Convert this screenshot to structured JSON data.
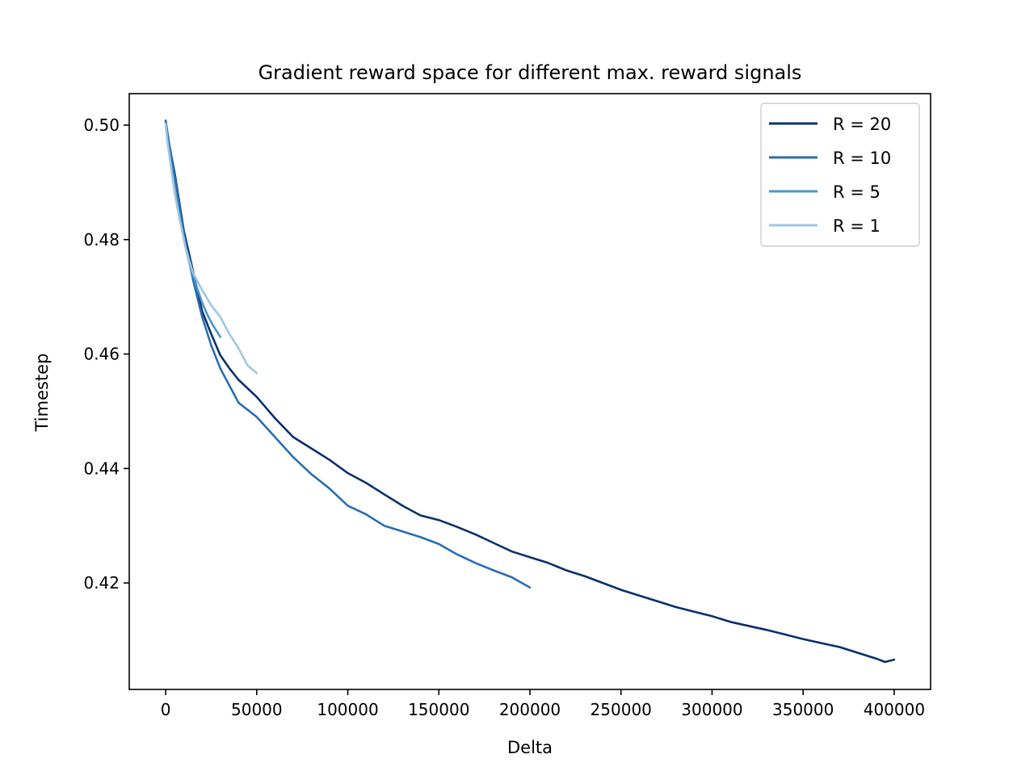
{
  "chart_data": {
    "type": "line",
    "title": "Gradient reward space for different max. reward signals",
    "xlabel": "Delta",
    "ylabel": "Timestep",
    "xlim": [
      -20000,
      420000
    ],
    "ylim": [
      0.4014,
      0.5055
    ],
    "xticks": [
      0,
      50000,
      100000,
      150000,
      200000,
      250000,
      300000,
      350000,
      400000
    ],
    "xtick_labels": [
      "0",
      "50000",
      "100000",
      "150000",
      "200000",
      "250000",
      "300000",
      "350000",
      "400000"
    ],
    "yticks": [
      0.42,
      0.44,
      0.46,
      0.48,
      0.5
    ],
    "ytick_labels": [
      "0.42",
      "0.44",
      "0.46",
      "0.48",
      "0.50"
    ],
    "grid": false,
    "legend": {
      "position": "top-right",
      "entries": [
        "R = 20",
        "R = 10",
        "R = 5",
        "R = 1"
      ]
    },
    "series": [
      {
        "name": "R = 20",
        "color": "#08306b",
        "x": [
          0,
          2000,
          5000,
          10000,
          15000,
          20000,
          25000,
          30000,
          35000,
          40000,
          50000,
          60000,
          70000,
          80000,
          90000,
          100000,
          110000,
          120000,
          130000,
          140000,
          150000,
          160000,
          170000,
          180000,
          190000,
          200000,
          210000,
          220000,
          230000,
          240000,
          250000,
          260000,
          270000,
          280000,
          290000,
          300000,
          310000,
          320000,
          330000,
          340000,
          350000,
          360000,
          370000,
          380000,
          390000,
          395000,
          400000
        ],
        "y": [
          0.5007,
          0.4965,
          0.4915,
          0.4815,
          0.4745,
          0.4675,
          0.4635,
          0.4598,
          0.4575,
          0.4555,
          0.4525,
          0.4488,
          0.4455,
          0.4435,
          0.4415,
          0.4392,
          0.4375,
          0.4355,
          0.4335,
          0.4318,
          0.431,
          0.4298,
          0.4285,
          0.427,
          0.4255,
          0.4245,
          0.4235,
          0.4222,
          0.4212,
          0.42,
          0.4188,
          0.4178,
          0.4168,
          0.4158,
          0.415,
          0.4142,
          0.4132,
          0.4125,
          0.4118,
          0.411,
          0.4102,
          0.4095,
          0.4088,
          0.4078,
          0.4068,
          0.4062,
          0.4066
        ]
      },
      {
        "name": "R = 10",
        "color": "#2b6db0",
        "x": [
          0,
          2000,
          5000,
          10000,
          15000,
          20000,
          25000,
          30000,
          35000,
          40000,
          50000,
          60000,
          70000,
          80000,
          90000,
          100000,
          110000,
          120000,
          130000,
          140000,
          150000,
          160000,
          170000,
          180000,
          190000,
          200000
        ],
        "y": [
          0.5008,
          0.4965,
          0.491,
          0.481,
          0.473,
          0.4665,
          0.4615,
          0.4575,
          0.4545,
          0.4515,
          0.449,
          0.4455,
          0.442,
          0.439,
          0.4365,
          0.4335,
          0.432,
          0.43,
          0.429,
          0.428,
          0.4268,
          0.425,
          0.4235,
          0.4222,
          0.421,
          0.4192
        ]
      },
      {
        "name": "R = 5",
        "color": "#4a94cb",
        "x": [
          0,
          1000,
          3000,
          5000,
          8000,
          11000,
          14000,
          17000,
          20000,
          23000,
          26000,
          28000,
          30000
        ],
        "y": [
          0.5003,
          0.4975,
          0.493,
          0.4885,
          0.4835,
          0.4785,
          0.4748,
          0.4718,
          0.469,
          0.4668,
          0.465,
          0.464,
          0.463
        ]
      },
      {
        "name": "R = 1",
        "color": "#9ec7e3",
        "x": [
          0,
          1000,
          3000,
          5000,
          8000,
          11000,
          15000,
          20000,
          25000,
          30000,
          35000,
          40000,
          45000,
          50000
        ],
        "y": [
          0.5002,
          0.497,
          0.4925,
          0.488,
          0.483,
          0.4785,
          0.4742,
          0.4712,
          0.4685,
          0.4665,
          0.4635,
          0.461,
          0.458,
          0.4567
        ]
      }
    ]
  }
}
